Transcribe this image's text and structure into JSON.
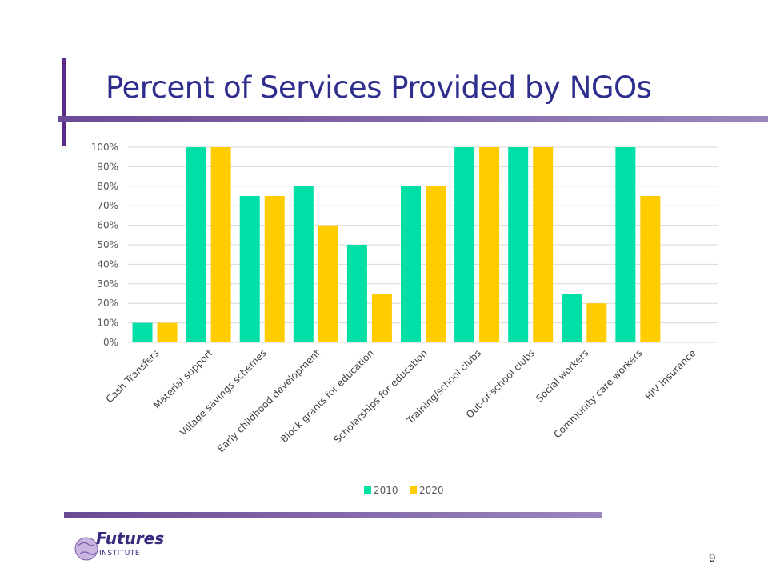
{
  "slide": {
    "title": "Percent of Services Provided by NGOs",
    "page_number": "9"
  },
  "logo": {
    "line1": "Futures",
    "line2": "INSTITUTE"
  },
  "colors": {
    "series_2010": "#00e0a6",
    "series_2020": "#ffcc00",
    "title": "#2e2e8e",
    "accent": "#5b2a86"
  },
  "chart_data": {
    "type": "bar",
    "categories": [
      "Cash Transfers",
      "Material support",
      "Village savings schemes",
      "Early childhood development",
      "Block grants for education",
      "Scholarships for education",
      "Training/school clubs",
      "Out-of-school clubs",
      "Social workers",
      "Community care workers",
      "HIV insurance"
    ],
    "series": [
      {
        "name": "2010",
        "values": [
          10,
          100,
          75,
          80,
          50,
          80,
          100,
          100,
          25,
          100,
          0
        ]
      },
      {
        "name": "2020",
        "values": [
          10,
          100,
          75,
          60,
          25,
          80,
          100,
          100,
          20,
          75,
          0
        ]
      }
    ],
    "y_ticks": [
      "0%",
      "10%",
      "20%",
      "30%",
      "40%",
      "50%",
      "60%",
      "70%",
      "80%",
      "90%",
      "100%"
    ],
    "ylim": [
      0,
      100
    ],
    "grid": true,
    "legend_position": "bottom"
  }
}
